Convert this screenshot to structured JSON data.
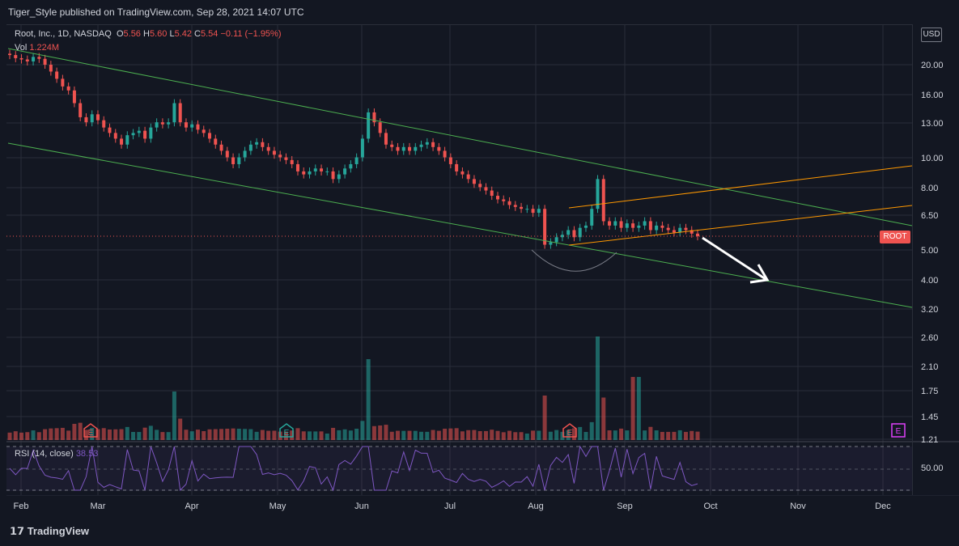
{
  "header": {
    "published": "Tiger_Style published on TradingView.com, Sep 28, 2021 14:07 UTC"
  },
  "legend": {
    "symbol": "Root, Inc., 1D, NASDAQ",
    "o_label": "O",
    "o": "5.56",
    "h_label": "H",
    "h": "5.60",
    "l_label": "L",
    "l": "5.42",
    "c_label": "C",
    "c": "5.54",
    "change": "−0.11 (−1.95%)",
    "vol_label": "Vol",
    "vol": "1.224M"
  },
  "rsi": {
    "label": "RSI (14, close)",
    "value": "38.53"
  },
  "currency_button": "USD",
  "price_badge": "ROOT",
  "price_axis": [
    "20.00",
    "16.00",
    "13.00",
    "10.00",
    "8.00",
    "6.50",
    "5.00",
    "4.00",
    "3.20",
    "2.60",
    "2.10",
    "1.75",
    "1.45",
    "1.21"
  ],
  "rsi_axis": [
    "50.00"
  ],
  "time_axis": [
    "Feb",
    "Mar",
    "Apr",
    "May",
    "Jun",
    "Jul",
    "Aug",
    "Sep",
    "Oct",
    "Nov",
    "Dec"
  ],
  "earnings_markers": [
    "E",
    "E",
    "E",
    "E"
  ],
  "footer": {
    "brand": "TradingView"
  },
  "colors": {
    "up": "#26a69a",
    "down": "#ef5350",
    "channel": "#4caf50",
    "wedge": "#ff9800",
    "rsi": "#7e57c2",
    "bg": "#131722"
  },
  "chart_data": {
    "type": "candlestick",
    "symbol": "ROOT",
    "price_scale": "log",
    "candles_close": [
      21.5,
      21.0,
      20.8,
      20.5,
      21.2,
      20.9,
      20.0,
      19.0,
      18.0,
      17.0,
      16.5,
      15.0,
      13.5,
      13.0,
      13.8,
      13.2,
      12.5,
      12.0,
      11.5,
      11.0,
      11.8,
      12.0,
      12.2,
      11.5,
      12.5,
      13.0,
      12.8,
      13.0,
      15.0,
      13.0,
      12.5,
      12.8,
      12.3,
      12.0,
      11.5,
      11.0,
      10.5,
      10.0,
      9.5,
      10.0,
      10.5,
      11.0,
      11.2,
      10.8,
      10.5,
      10.2,
      10.0,
      9.8,
      9.5,
      9.0,
      8.8,
      9.0,
      9.2,
      9.0,
      9.0,
      8.5,
      8.8,
      9.2,
      9.5,
      10.0,
      11.5,
      14.0,
      13.0,
      12.0,
      11.0,
      10.8,
      10.5,
      10.8,
      10.5,
      10.8,
      11.0,
      11.2,
      10.8,
      10.5,
      10.0,
      9.5,
      9.0,
      8.8,
      8.5,
      8.2,
      8.0,
      7.8,
      7.5,
      7.3,
      7.2,
      7.0,
      6.9,
      6.8,
      6.8,
      6.6,
      6.8,
      5.2,
      5.3,
      5.5,
      5.6,
      5.8,
      5.5,
      5.9,
      6.0,
      6.8,
      8.5,
      6.2,
      6.0,
      6.2,
      5.9,
      6.1,
      5.9,
      6.0,
      6.2,
      5.8,
      6.0,
      5.9,
      5.8,
      5.7,
      5.9,
      5.8,
      5.65,
      5.54
    ],
    "volume_spikes": [
      {
        "x": "Mar 29",
        "v": "high"
      },
      {
        "x": "Jun 10",
        "v": "very high"
      },
      {
        "x": "Aug 12",
        "v": "high"
      },
      {
        "x": "Aug 26",
        "v": "highest"
      },
      {
        "x": "Sep 8",
        "v": "high"
      }
    ],
    "rsi_last": 38.53
  }
}
